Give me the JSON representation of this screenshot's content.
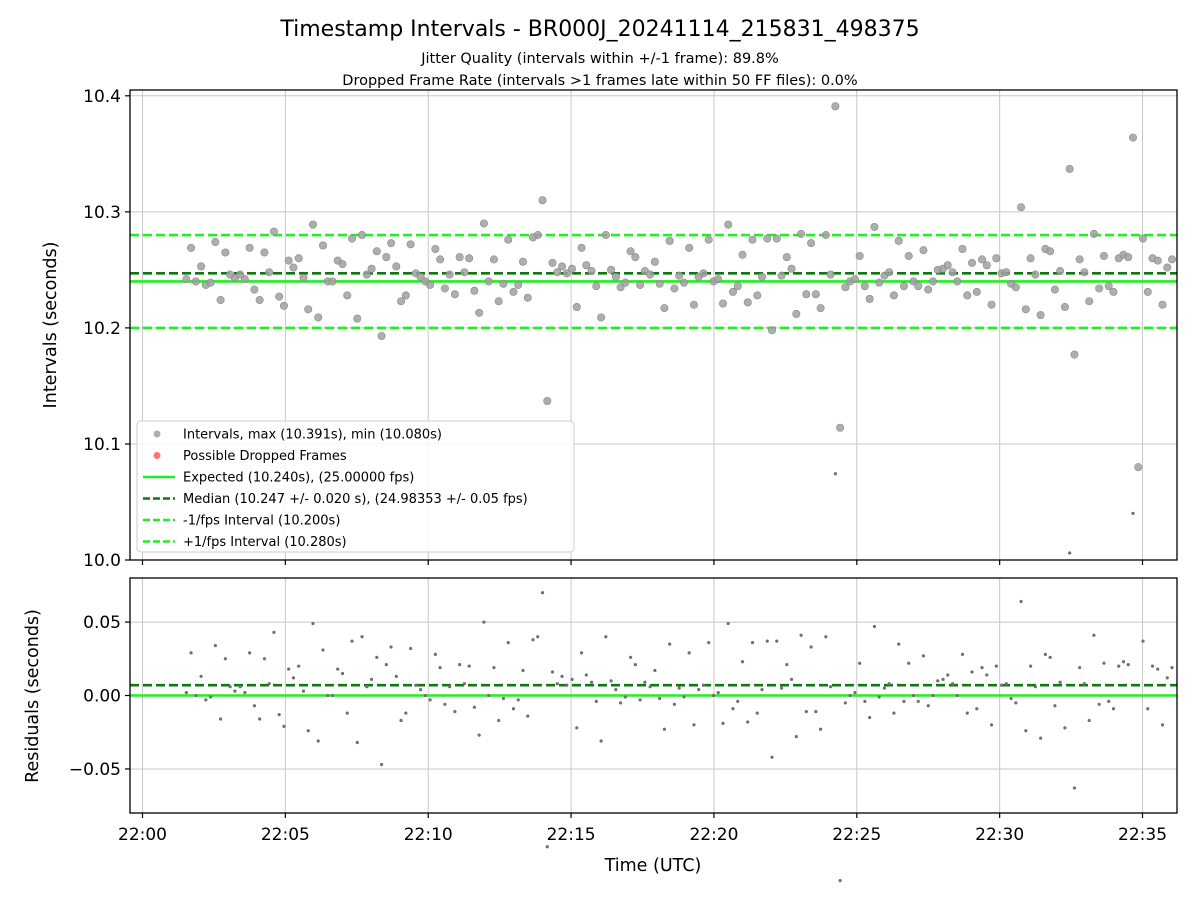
{
  "title": "Timestamp Intervals - BR000J_20241114_215831_498375",
  "subtitle_lines": [
    "Jitter Quality (intervals within +/-1 frame): 89.8%",
    "Dropped Frame Rate (intervals >1 frames late within 50 FF files): 0.0%"
  ],
  "colors": {
    "intervals": "#a0a0a0",
    "residuals": "#707070",
    "dropped": "#ff5a5a",
    "expected": "#22ee22",
    "median": "#117711",
    "fps_band": "#22ee22",
    "grid": "#c8c8c8"
  },
  "chart_data": [
    {
      "type": "scatter",
      "panel": "intervals",
      "ylabel": "Intervals (seconds)",
      "xlabel": "",
      "xlim": [
        "22:00",
        "22:36"
      ],
      "ylim": [
        10.0,
        10.405
      ],
      "x_ticks": [
        "22:00",
        "22:05",
        "22:10",
        "22:15",
        "22:20",
        "22:25",
        "22:30",
        "22:35"
      ],
      "y_ticks": [
        "10.0",
        "10.1",
        "10.2",
        "10.3",
        "10.4"
      ],
      "grid": true,
      "legend_placement": "lower-left",
      "legend": [
        {
          "label": "Intervals, max (10.391s), min (10.080s)",
          "kind": "point",
          "series": "intervals"
        },
        {
          "label": "Possible Dropped Frames",
          "kind": "point",
          "series": "dropped"
        },
        {
          "label": "Expected (10.240s), (25.00000 fps)",
          "kind": "solid",
          "series": "expected"
        },
        {
          "label": "Median (10.247 +/- 0.020 s), (24.98353 +/- 0.05 fps)",
          "kind": "dashed",
          "series": "median"
        },
        {
          "label": "-1/fps Interval (10.200s)",
          "kind": "dashed",
          "series": "fps_band"
        },
        {
          "label": "+1/fps Interval (10.280s)",
          "kind": "dashed",
          "series": "fps_band"
        }
      ],
      "reference_lines": [
        {
          "series": "expected",
          "y": 10.24,
          "style": "solid"
        },
        {
          "series": "median",
          "y": 10.247,
          "style": "dashed"
        },
        {
          "series": "fps_band",
          "y": 10.2,
          "style": "dashed"
        },
        {
          "series": "fps_band",
          "y": 10.28,
          "style": "dashed"
        }
      ],
      "series": [
        {
          "points": [
            [
              "22:01:32",
              10.242
            ],
            [
              "22:01:42",
              10.269
            ],
            [
              "22:01:52",
              10.24
            ],
            [
              "22:02:03",
              10.253
            ],
            [
              "22:02:13",
              10.237
            ],
            [
              "22:02:23",
              10.239
            ],
            [
              "22:02:33",
              10.274
            ],
            [
              "22:02:44",
              10.224
            ],
            [
              "22:02:54",
              10.265
            ],
            [
              "22:03:04",
              10.246
            ],
            [
              "22:03:14",
              10.243
            ],
            [
              "22:03:25",
              10.246
            ],
            [
              "22:03:35",
              10.242
            ],
            [
              "22:03:45",
              10.269
            ],
            [
              "22:03:55",
              10.233
            ],
            [
              "22:04:06",
              10.224
            ],
            [
              "22:04:16",
              10.265
            ],
            [
              "22:04:26",
              10.248
            ],
            [
              "22:04:36",
              10.283
            ],
            [
              "22:04:47",
              10.227
            ],
            [
              "22:04:57",
              10.219
            ],
            [
              "22:05:07",
              10.258
            ],
            [
              "22:05:17",
              10.252
            ],
            [
              "22:05:28",
              10.26
            ],
            [
              "22:05:38",
              10.243
            ],
            [
              "22:05:48",
              10.216
            ],
            [
              "22:05:58",
              10.289
            ],
            [
              "22:06:09",
              10.209
            ],
            [
              "22:06:19",
              10.271
            ],
            [
              "22:06:29",
              10.24
            ],
            [
              "22:06:39",
              10.24
            ],
            [
              "22:06:50",
              10.258
            ],
            [
              "22:07:00",
              10.255
            ],
            [
              "22:07:10",
              10.228
            ],
            [
              "22:07:20",
              10.277
            ],
            [
              "22:07:31",
              10.208
            ],
            [
              "22:07:41",
              10.28
            ],
            [
              "22:07:51",
              10.246
            ],
            [
              "22:08:01",
              10.251
            ],
            [
              "22:08:12",
              10.266
            ],
            [
              "22:08:22",
              10.193
            ],
            [
              "22:08:32",
              10.261
            ],
            [
              "22:08:42",
              10.273
            ],
            [
              "22:08:53",
              10.253
            ],
            [
              "22:09:03",
              10.223
            ],
            [
              "22:09:13",
              10.228
            ],
            [
              "22:09:23",
              10.272
            ],
            [
              "22:09:34",
              10.247
            ],
            [
              "22:09:44",
              10.244
            ],
            [
              "22:09:54",
              10.24
            ],
            [
              "22:10:04",
              10.237
            ],
            [
              "22:10:15",
              10.268
            ],
            [
              "22:10:25",
              10.259
            ],
            [
              "22:10:35",
              10.234
            ],
            [
              "22:10:45",
              10.246
            ],
            [
              "22:10:56",
              10.229
            ],
            [
              "22:11:06",
              10.261
            ],
            [
              "22:11:16",
              10.248
            ],
            [
              "22:11:26",
              10.26
            ],
            [
              "22:11:37",
              10.232
            ],
            [
              "22:11:47",
              10.213
            ],
            [
              "22:11:57",
              10.29
            ],
            [
              "22:12:07",
              10.24
            ],
            [
              "22:12:18",
              10.259
            ],
            [
              "22:12:28",
              10.223
            ],
            [
              "22:12:38",
              10.238
            ],
            [
              "22:12:48",
              10.276
            ],
            [
              "22:12:59",
              10.231
            ],
            [
              "22:13:09",
              10.237
            ],
            [
              "22:13:19",
              10.257
            ],
            [
              "22:13:29",
              10.226
            ],
            [
              "22:13:40",
              10.278
            ],
            [
              "22:13:50",
              10.28
            ],
            [
              "22:14:00",
              10.31
            ],
            [
              "22:14:10",
              10.137
            ],
            [
              "22:14:21",
              10.256
            ],
            [
              "22:14:31",
              10.248
            ],
            [
              "22:14:41",
              10.253
            ],
            [
              "22:14:51",
              10.247
            ],
            [
              "22:15:02",
              10.251
            ],
            [
              "22:15:12",
              10.218
            ],
            [
              "22:15:22",
              10.269
            ],
            [
              "22:15:32",
              10.254
            ],
            [
              "22:15:43",
              10.249
            ],
            [
              "22:15:53",
              10.236
            ],
            [
              "22:16:03",
              10.209
            ],
            [
              "22:16:13",
              10.28
            ],
            [
              "22:16:24",
              10.25
            ],
            [
              "22:16:34",
              10.244
            ],
            [
              "22:16:44",
              10.235
            ],
            [
              "22:16:54",
              10.239
            ],
            [
              "22:17:05",
              10.266
            ],
            [
              "22:17:15",
              10.261
            ],
            [
              "22:17:25",
              10.237
            ],
            [
              "22:17:35",
              10.249
            ],
            [
              "22:17:46",
              10.246
            ],
            [
              "22:17:56",
              10.257
            ],
            [
              "22:18:06",
              10.238
            ],
            [
              "22:18:16",
              10.217
            ],
            [
              "22:18:27",
              10.275
            ],
            [
              "22:18:37",
              10.234
            ],
            [
              "22:18:47",
              10.245
            ],
            [
              "22:18:57",
              10.239
            ],
            [
              "22:19:08",
              10.269
            ],
            [
              "22:19:18",
              10.22
            ],
            [
              "22:19:28",
              10.244
            ],
            [
              "22:19:38",
              10.247
            ],
            [
              "22:19:49",
              10.276
            ],
            [
              "22:19:59",
              10.24
            ],
            [
              "22:20:09",
              10.242
            ],
            [
              "22:20:19",
              10.221
            ],
            [
              "22:20:30",
              10.289
            ],
            [
              "22:20:40",
              10.231
            ],
            [
              "22:20:50",
              10.236
            ],
            [
              "22:21:00",
              10.263
            ],
            [
              "22:21:11",
              10.222
            ],
            [
              "22:21:21",
              10.276
            ],
            [
              "22:21:31",
              10.228
            ],
            [
              "22:21:41",
              10.244
            ],
            [
              "22:21:52",
              10.277
            ],
            [
              "22:22:02",
              10.198
            ],
            [
              "22:22:12",
              10.277
            ],
            [
              "22:22:22",
              10.245
            ],
            [
              "22:22:33",
              10.261
            ],
            [
              "22:22:43",
              10.251
            ],
            [
              "22:22:53",
              10.212
            ],
            [
              "22:23:03",
              10.281
            ],
            [
              "22:23:14",
              10.229
            ],
            [
              "22:23:24",
              10.273
            ],
            [
              "22:23:34",
              10.229
            ],
            [
              "22:23:44",
              10.217
            ],
            [
              "22:23:55",
              10.28
            ],
            [
              "22:24:05",
              10.246
            ],
            [
              "22:24:15",
              10.391
            ],
            [
              "22:24:25",
              10.114
            ],
            [
              "22:24:36",
              10.235
            ],
            [
              "22:24:46",
              10.24
            ],
            [
              "22:24:56",
              10.242
            ],
            [
              "22:25:06",
              10.262
            ],
            [
              "22:25:17",
              10.236
            ],
            [
              "22:25:27",
              10.225
            ],
            [
              "22:25:37",
              10.287
            ],
            [
              "22:25:47",
              10.239
            ],
            [
              "22:25:58",
              10.245
            ],
            [
              "22:26:08",
              10.248
            ],
            [
              "22:26:18",
              10.228
            ],
            [
              "22:26:28",
              10.275
            ],
            [
              "22:26:39",
              10.236
            ],
            [
              "22:26:49",
              10.262
            ],
            [
              "22:26:59",
              10.24
            ],
            [
              "22:27:09",
              10.236
            ],
            [
              "22:27:20",
              10.267
            ],
            [
              "22:27:30",
              10.233
            ],
            [
              "22:27:40",
              10.24
            ],
            [
              "22:27:50",
              10.25
            ],
            [
              "22:28:01",
              10.251
            ],
            [
              "22:28:11",
              10.254
            ],
            [
              "22:28:21",
              10.248
            ],
            [
              "22:28:31",
              10.24
            ],
            [
              "22:28:42",
              10.268
            ],
            [
              "22:28:52",
              10.228
            ],
            [
              "22:29:02",
              10.256
            ],
            [
              "22:29:12",
              10.231
            ],
            [
              "22:29:23",
              10.259
            ],
            [
              "22:29:33",
              10.254
            ],
            [
              "22:29:43",
              10.22
            ],
            [
              "22:29:53",
              10.26
            ],
            [
              "22:30:04",
              10.247
            ],
            [
              "22:30:14",
              10.248
            ],
            [
              "22:30:24",
              10.238
            ],
            [
              "22:30:34",
              10.235
            ],
            [
              "22:30:45",
              10.304
            ],
            [
              "22:30:55",
              10.216
            ],
            [
              "22:31:05",
              10.26
            ],
            [
              "22:31:15",
              10.246
            ],
            [
              "22:31:26",
              10.211
            ],
            [
              "22:31:36",
              10.268
            ],
            [
              "22:31:46",
              10.266
            ],
            [
              "22:31:56",
              10.233
            ],
            [
              "22:32:07",
              10.249
            ],
            [
              "22:32:17",
              10.218
            ],
            [
              "22:32:27",
              10.337
            ],
            [
              "22:32:37",
              10.177
            ],
            [
              "22:32:48",
              10.259
            ],
            [
              "22:32:58",
              10.248
            ],
            [
              "22:33:08",
              10.223
            ],
            [
              "22:33:18",
              10.281
            ],
            [
              "22:33:29",
              10.234
            ],
            [
              "22:33:39",
              10.262
            ],
            [
              "22:33:49",
              10.236
            ],
            [
              "22:33:59",
              10.231
            ],
            [
              "22:34:10",
              10.26
            ],
            [
              "22:34:20",
              10.263
            ],
            [
              "22:34:30",
              10.261
            ],
            [
              "22:34:40",
              10.364
            ],
            [
              "22:34:51",
              10.08
            ],
            [
              "22:35:01",
              10.277
            ],
            [
              "22:35:11",
              10.231
            ],
            [
              "22:35:21",
              10.26
            ],
            [
              "22:35:32",
              10.258
            ],
            [
              "22:35:42",
              10.22
            ],
            [
              "22:35:52",
              10.252
            ],
            [
              "22:36:02",
              10.259
            ]
          ]
        }
      ]
    },
    {
      "type": "scatter",
      "panel": "residuals",
      "ylabel": "Residuals (seconds)",
      "xlabel": "Time (UTC)",
      "xlim": [
        "22:00",
        "22:36"
      ],
      "ylim": [
        -0.08,
        0.08
      ],
      "x_ticks": [
        "22:00",
        "22:05",
        "22:10",
        "22:15",
        "22:20",
        "22:25",
        "22:30",
        "22:35"
      ],
      "y_ticks": [
        "0.05",
        "0.00",
        "−0.05"
      ],
      "grid": true,
      "reference_lines": [
        {
          "series": "expected",
          "y": 0.0,
          "style": "solid"
        },
        {
          "series": "median",
          "y": 0.007,
          "style": "dashed"
        }
      ]
    }
  ]
}
